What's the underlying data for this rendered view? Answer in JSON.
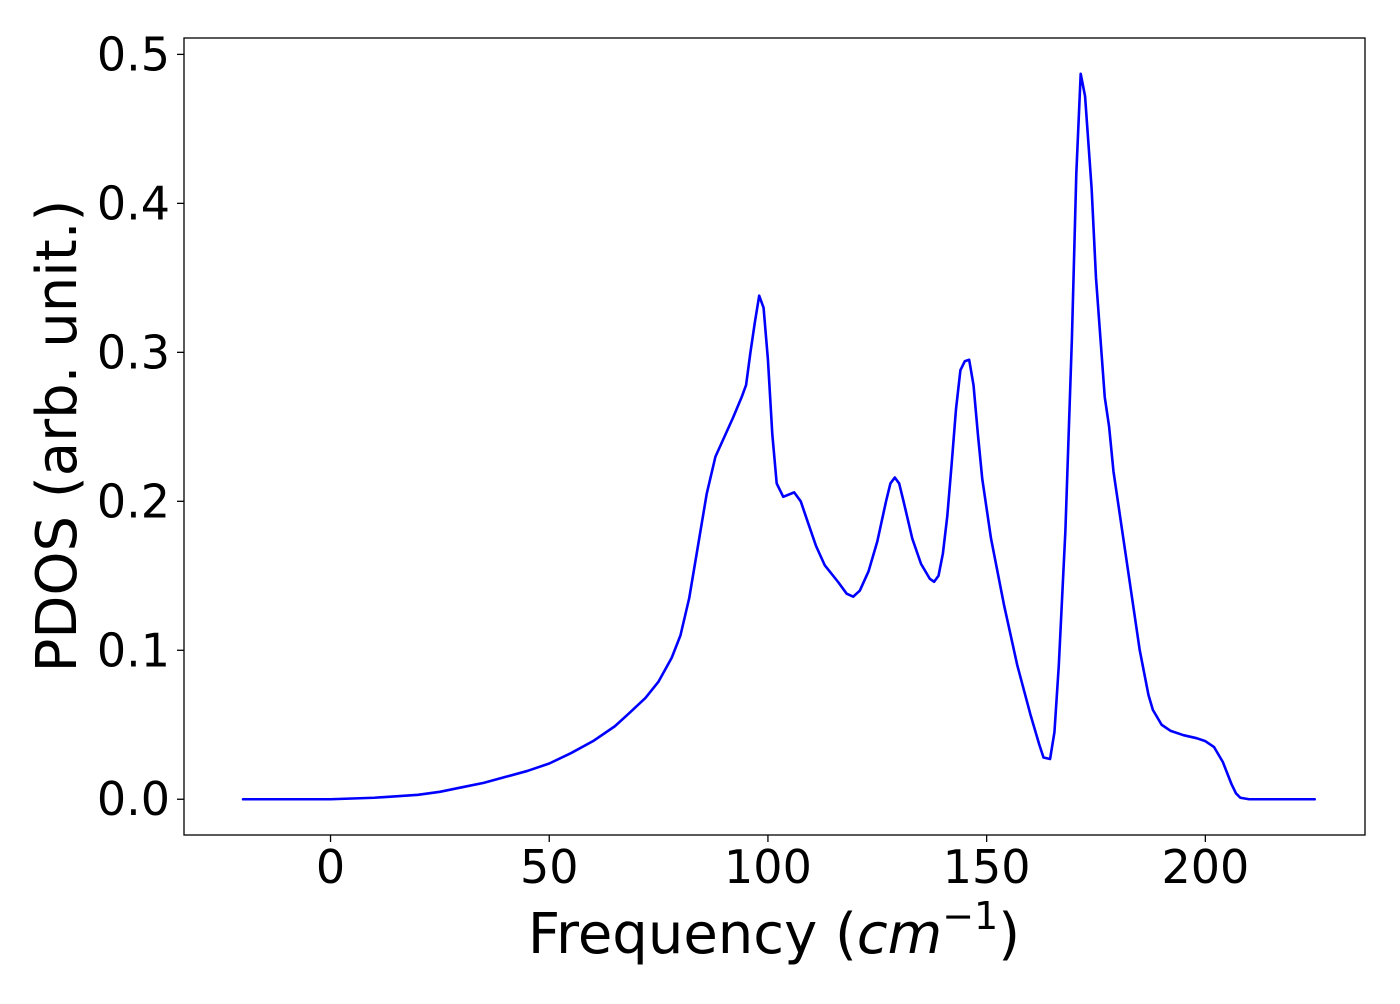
{
  "chart_data": {
    "type": "line",
    "title": "",
    "xlabel": "Frequency (",
    "xlabel_math": "cm",
    "xlabel_sup": "−1",
    "xlabel_close": ")",
    "ylabel": "PDOS (arb. unit.)",
    "xlim": [
      -33.5,
      236.5
    ],
    "ylim": [
      -0.024,
      0.511
    ],
    "x_ticks": [
      0,
      50,
      100,
      150,
      200
    ],
    "x_tick_labels": [
      "0",
      "50",
      "100",
      "150",
      "200"
    ],
    "y_ticks": [
      0.0,
      0.1,
      0.2,
      0.3,
      0.4,
      0.5
    ],
    "y_tick_labels": [
      "0.0",
      "0.1",
      "0.2",
      "0.3",
      "0.4",
      "0.5"
    ],
    "grid": false,
    "legend": false,
    "series": [
      {
        "color": "#0000ff",
        "points": [
          [
            -20,
            0.0
          ],
          [
            0,
            0.0
          ],
          [
            5,
            0.0005
          ],
          [
            10,
            0.001
          ],
          [
            15,
            0.002
          ],
          [
            20,
            0.003
          ],
          [
            25,
            0.005
          ],
          [
            30,
            0.008
          ],
          [
            35,
            0.011
          ],
          [
            40,
            0.015
          ],
          [
            45,
            0.019
          ],
          [
            50,
            0.024
          ],
          [
            55,
            0.031
          ],
          [
            60,
            0.039
          ],
          [
            65,
            0.049
          ],
          [
            68,
            0.057
          ],
          [
            72,
            0.068
          ],
          [
            75,
            0.079
          ],
          [
            78,
            0.095
          ],
          [
            80,
            0.11
          ],
          [
            82,
            0.135
          ],
          [
            84,
            0.17
          ],
          [
            86,
            0.205
          ],
          [
            88,
            0.23
          ],
          [
            90,
            0.243
          ],
          [
            92,
            0.256
          ],
          [
            94,
            0.27
          ],
          [
            95,
            0.278
          ],
          [
            96,
            0.3
          ],
          [
            97,
            0.32
          ],
          [
            98,
            0.338
          ],
          [
            99,
            0.33
          ],
          [
            100,
            0.295
          ],
          [
            101,
            0.245
          ],
          [
            102,
            0.212
          ],
          [
            103.5,
            0.203
          ],
          [
            106,
            0.206
          ],
          [
            107.5,
            0.2
          ],
          [
            109,
            0.187
          ],
          [
            111,
            0.17
          ],
          [
            113,
            0.157
          ],
          [
            116,
            0.146
          ],
          [
            118,
            0.138
          ],
          [
            119.5,
            0.136
          ],
          [
            121,
            0.14
          ],
          [
            123,
            0.153
          ],
          [
            125,
            0.173
          ],
          [
            127,
            0.2
          ],
          [
            128,
            0.212
          ],
          [
            129,
            0.216
          ],
          [
            130,
            0.212
          ],
          [
            131,
            0.2
          ],
          [
            133,
            0.175
          ],
          [
            135,
            0.158
          ],
          [
            137,
            0.148
          ],
          [
            138,
            0.146
          ],
          [
            139,
            0.15
          ],
          [
            140,
            0.165
          ],
          [
            141,
            0.19
          ],
          [
            142,
            0.225
          ],
          [
            143,
            0.262
          ],
          [
            144,
            0.288
          ],
          [
            145,
            0.294
          ],
          [
            146,
            0.295
          ],
          [
            147,
            0.278
          ],
          [
            148,
            0.245
          ],
          [
            149,
            0.215
          ],
          [
            151,
            0.175
          ],
          [
            154,
            0.13
          ],
          [
            157,
            0.09
          ],
          [
            160,
            0.057
          ],
          [
            162,
            0.037
          ],
          [
            163,
            0.028
          ],
          [
            164.5,
            0.027
          ],
          [
            165.5,
            0.045
          ],
          [
            166.5,
            0.09
          ],
          [
            168,
            0.18
          ],
          [
            169.5,
            0.31
          ],
          [
            170.5,
            0.42
          ],
          [
            171.5,
            0.487
          ],
          [
            172.5,
            0.472
          ],
          [
            174,
            0.41
          ],
          [
            175,
            0.35
          ],
          [
            177,
            0.27
          ],
          [
            178,
            0.25
          ],
          [
            179,
            0.22
          ],
          [
            181,
            0.18
          ],
          [
            183,
            0.14
          ],
          [
            185,
            0.1
          ],
          [
            187,
            0.07
          ],
          [
            188,
            0.06
          ],
          [
            190,
            0.05
          ],
          [
            192,
            0.046
          ],
          [
            195,
            0.043
          ],
          [
            198,
            0.041
          ],
          [
            200,
            0.039
          ],
          [
            202,
            0.035
          ],
          [
            204,
            0.025
          ],
          [
            206,
            0.01
          ],
          [
            207,
            0.004
          ],
          [
            208,
            0.001
          ],
          [
            210,
            0.0
          ],
          [
            225,
            0.0
          ]
        ]
      }
    ]
  }
}
